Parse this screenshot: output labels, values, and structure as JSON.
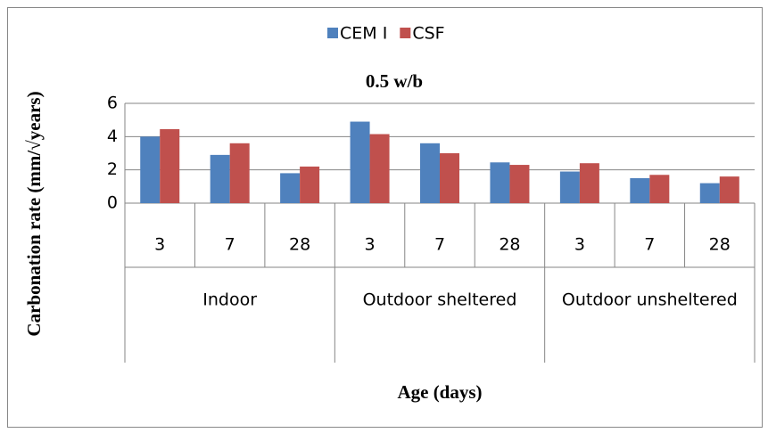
{
  "chart_data": {
    "type": "bar",
    "title": "0.5 w/b",
    "y_label": "Carbonation rate (mm/√years)",
    "x_label": "Age (days)",
    "categories": [
      "3",
      "7",
      "28",
      "3",
      "7",
      "28",
      "3",
      "7",
      "28"
    ],
    "groups": [
      "Indoor",
      "Outdoor sheltered",
      "Outdoor unsheltered"
    ],
    "series": [
      {
        "name": "CEM I",
        "color": "#4f81bd",
        "values": [
          4.0,
          2.9,
          1.8,
          4.9,
          3.6,
          2.45,
          1.9,
          1.5,
          1.2
        ]
      },
      {
        "name": "CSF",
        "color": "#c0504d",
        "values": [
          4.45,
          3.6,
          2.2,
          4.15,
          3.0,
          2.3,
          2.4,
          1.7,
          1.6
        ]
      }
    ],
    "ylim": [
      0,
      6
    ],
    "yticks": [
      0,
      2,
      4,
      6
    ],
    "grid": true,
    "legend": "top"
  }
}
